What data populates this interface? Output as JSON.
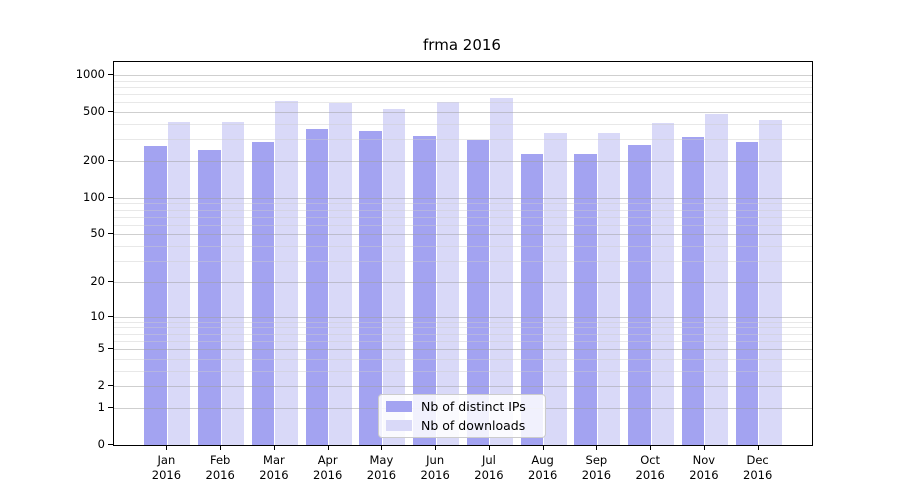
{
  "title": "frma 2016",
  "legend": {
    "items": [
      {
        "label": "Nb of distinct IPs",
        "color": "#a3a3f1"
      },
      {
        "label": "Nb of downloads",
        "color": "#d9d9f8"
      }
    ],
    "position": "lower center"
  },
  "chart_data": {
    "type": "bar",
    "title": "frma 2016",
    "categories": [
      "Jan 2016",
      "Feb 2016",
      "Mar 2016",
      "Apr 2016",
      "May 2016",
      "Jun 2016",
      "Jul 2016",
      "Aug 2016",
      "Sep 2016",
      "Oct 2016",
      "Nov 2016",
      "Dec 2016"
    ],
    "series": [
      {
        "name": "Nb of distinct IPs",
        "color": "#a3a3f1",
        "values": [
          263,
          247,
          288,
          366,
          349,
          321,
          296,
          230,
          227,
          270,
          316,
          288
        ]
      },
      {
        "name": "Nb of downloads",
        "color": "#d9d9f8",
        "values": [
          416,
          418,
          614,
          596,
          533,
          606,
          654,
          341,
          335,
          406,
          485,
          431
        ]
      }
    ],
    "xlabel": "",
    "ylabel": "",
    "y_scale": "log1p",
    "y_ticks": [
      0,
      1,
      2,
      5,
      10,
      20,
      50,
      100,
      200,
      500,
      1000
    ],
    "y_minor_gridlines": [
      3,
      4,
      6,
      7,
      8,
      9,
      30,
      40,
      60,
      70,
      80,
      90,
      300,
      400,
      600,
      700,
      800,
      900
    ],
    "ylim": [
      0,
      1276
    ],
    "grid": true,
    "legend_position": "lower center"
  }
}
